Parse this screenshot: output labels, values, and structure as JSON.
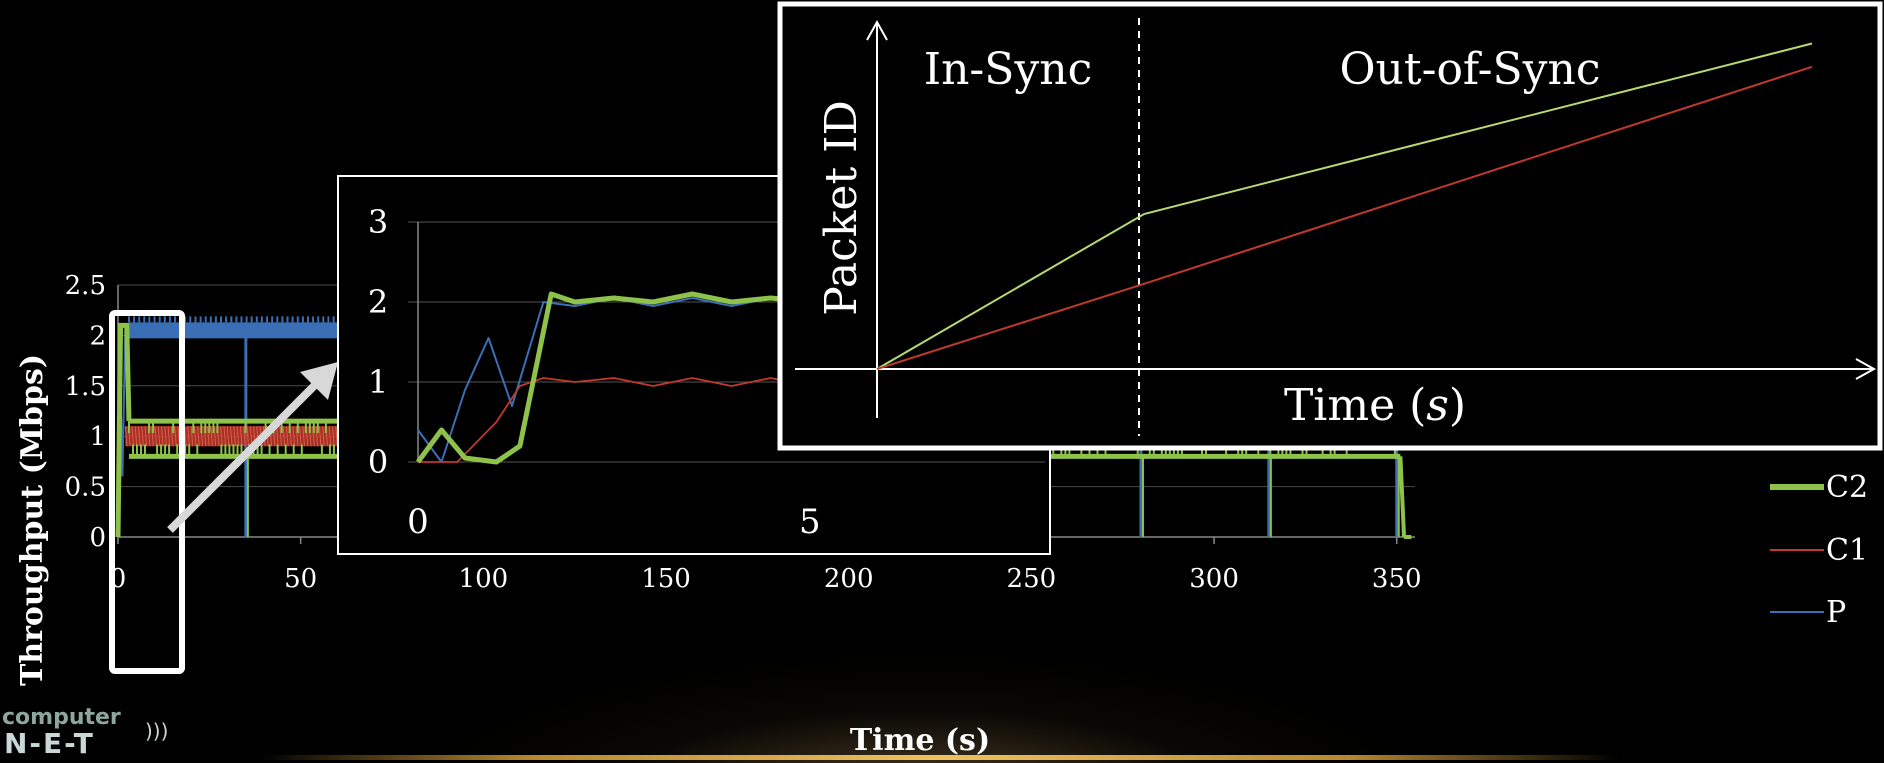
{
  "colors": {
    "c2": "#8ec24a",
    "c1": "#c0392b",
    "p": "#3a6fb5",
    "accent_line": "#e8c070"
  },
  "logo": {
    "line1": "computer",
    "line2": "N-E-T",
    "signal_icon": "wifi-signal-icon"
  },
  "chart_data": [
    {
      "type": "line",
      "xlabel": "Time (s)",
      "ylabel": "Throughput (Mbps)",
      "xlim": [
        0,
        355
      ],
      "ylim": [
        0,
        2.5
      ],
      "xticks": [
        "0",
        "50",
        "100",
        "150",
        "200",
        "250",
        "300",
        "350"
      ],
      "yticks": [
        "0",
        "0.5",
        "1",
        "1.5",
        "2",
        "2.5"
      ],
      "grid": true,
      "legend": "right",
      "series": [
        {
          "name": "C2",
          "description": "oscillates between 0.8 and 1.15 Mbps after initial 2.1 Mbps burst"
        },
        {
          "name": "C1",
          "description": "oscillates between 0.9 and 1.1 Mbps"
        },
        {
          "name": "P",
          "description": "near 2.0-2.1 Mbps with periodic drops to 0 about every 35 s"
        }
      ],
      "series_names": [
        "C2",
        "C1",
        "P"
      ],
      "p_drop_times": [
        35,
        70,
        105,
        140,
        175,
        210,
        245,
        280,
        315,
        350
      ],
      "c2_dip_times": [
        70,
        209
      ],
      "c2": {
        "high": 1.15,
        "low": 0.8
      },
      "c1": {
        "high": 1.1,
        "low": 0.9
      },
      "p_level": 2.05
    },
    {
      "type": "line",
      "title": "",
      "xticks": [
        "0",
        "5"
      ],
      "yticks": [
        "0",
        "1",
        "2",
        "3"
      ],
      "xlim": [
        0,
        8
      ],
      "ylim": [
        0,
        3
      ],
      "series": [
        {
          "name": "C2",
          "x": [
            0,
            0.3,
            0.6,
            1.0,
            1.3,
            1.7,
            2.0,
            2.5,
            3.0,
            3.5,
            4.0,
            4.5,
            5.0,
            5.5,
            6.0,
            6.3,
            6.5,
            6.8,
            7.2,
            7.6,
            8.0
          ],
          "y": [
            0,
            0.4,
            0.05,
            0,
            0.2,
            2.1,
            2.0,
            2.05,
            2.0,
            2.1,
            2.0,
            2.05,
            2.0,
            1.65,
            1.55,
            0.8,
            1.15,
            0.8,
            1.1,
            0.85,
            1.0
          ]
        },
        {
          "name": "C1",
          "x": [
            0,
            0.5,
            1.0,
            1.3,
            1.6,
            2.0,
            2.5,
            3.0,
            3.5,
            4.0,
            4.5,
            5.0,
            5.5,
            6.0,
            6.5,
            7.0,
            7.5,
            8.0
          ],
          "y": [
            0,
            0,
            0.5,
            0.95,
            1.05,
            1.0,
            1.05,
            0.95,
            1.05,
            0.95,
            1.05,
            0.95,
            1.05,
            0.95,
            1.05,
            0.95,
            1.05,
            1.0
          ]
        },
        {
          "name": "P",
          "x": [
            0,
            0.3,
            0.6,
            0.9,
            1.2,
            1.6,
            2.0,
            2.5,
            3.0,
            3.5,
            4.0,
            4.5,
            5.0,
            5.5,
            6.0,
            6.5,
            7.0,
            7.5,
            8.0
          ],
          "y": [
            0.4,
            0,
            0.9,
            1.55,
            0.7,
            2.0,
            1.95,
            2.05,
            1.95,
            2.05,
            1.95,
            2.05,
            1.95,
            2.05,
            1.95,
            2.05,
            1.95,
            2.05,
            2.0
          ]
        }
      ]
    },
    {
      "type": "line",
      "xlabel": "Time (s)",
      "ylabel": "Packet ID",
      "annotations": [
        "In-Sync",
        "Out-of-Sync"
      ],
      "series": [
        {
          "name": "",
          "color": "#b8d870",
          "x": [
            0,
            1,
            3.5
          ],
          "y": [
            0,
            1.0,
            2.1
          ]
        },
        {
          "name": "",
          "color": "#c0392b",
          "x": [
            0,
            1,
            3.5
          ],
          "y": [
            0,
            0.55,
            1.95
          ]
        }
      ],
      "xlim": [
        0,
        3.5
      ],
      "ylim": [
        0,
        2.2
      ],
      "sync_boundary_x": 1
    }
  ]
}
